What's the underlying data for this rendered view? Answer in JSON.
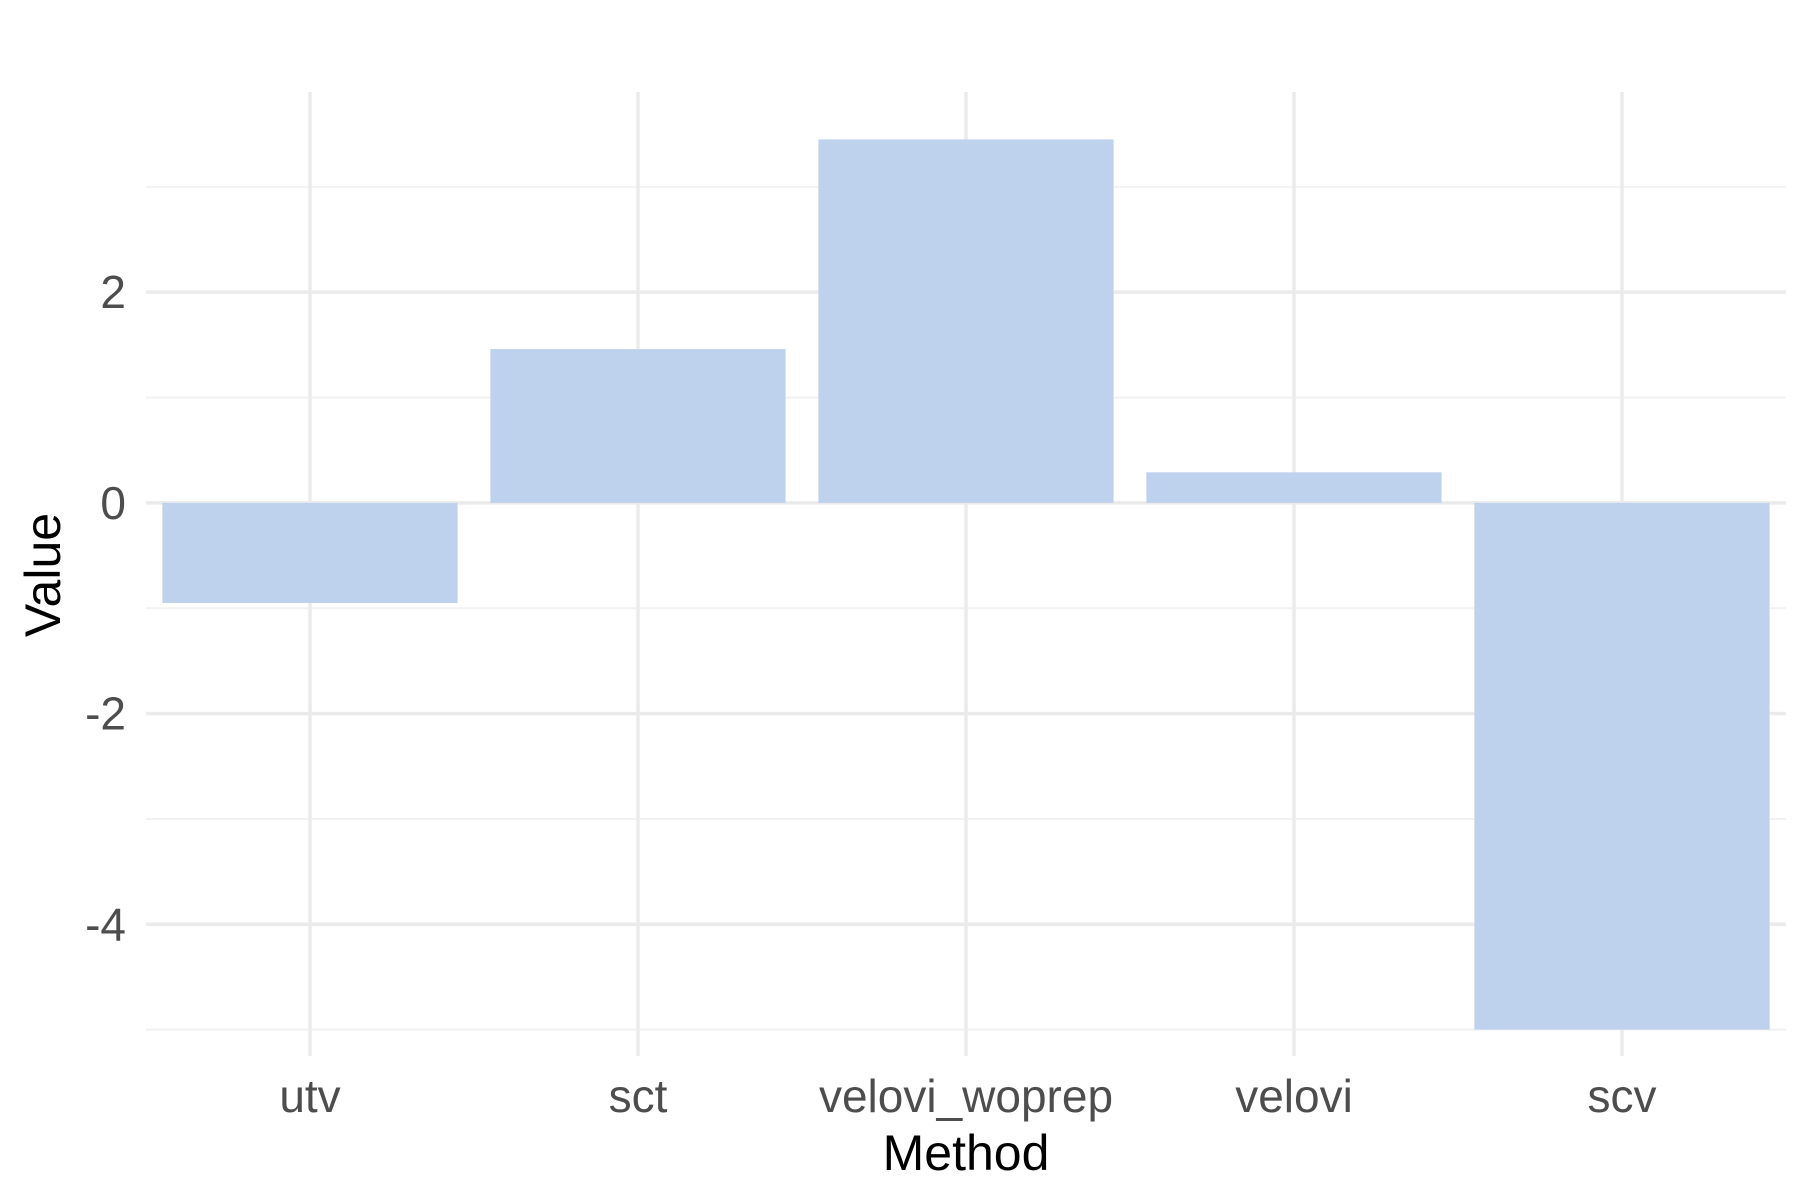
{
  "chart_data": {
    "type": "bar",
    "title": "",
    "xlabel": "Method",
    "ylabel": "Value",
    "categories": [
      "utv",
      "sct",
      "velovi_woprep",
      "velovi",
      "scv"
    ],
    "values": [
      -0.95,
      1.46,
      3.45,
      0.29,
      -5.0
    ],
    "ylim": [
      -5.25,
      3.9
    ],
    "y_major_ticks": [
      -4,
      -2,
      0,
      2
    ],
    "y_tick_labels": [
      "-4",
      "-2",
      "0",
      "2"
    ],
    "y_minor_ticks": [
      -5,
      -3,
      -1,
      1,
      3
    ],
    "grid": true,
    "legend": "none",
    "colors": {
      "bar": "#bed2ee",
      "grid_major": "#ebebeb",
      "grid_minor": "#f2f2f2",
      "tick_text": "#4d4d4d",
      "axis_title": "#000000"
    }
  }
}
